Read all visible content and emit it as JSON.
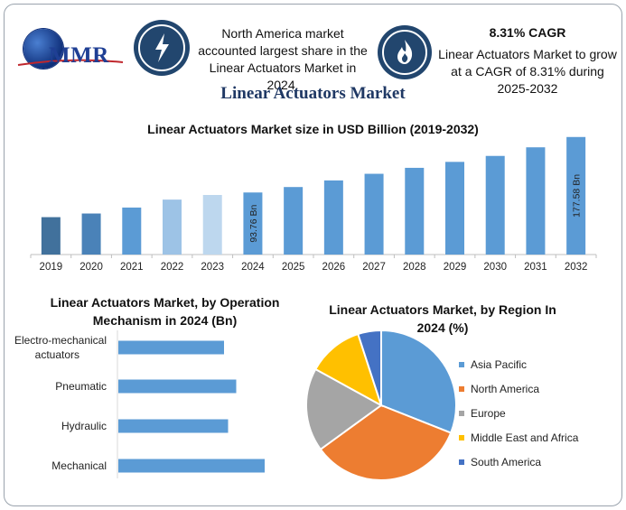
{
  "brand": {
    "logo_text": "MMR"
  },
  "info_left": {
    "icon": "lightning-icon",
    "text": "North America market accounted largest share in the Linear Actuators Market in 2024."
  },
  "info_right": {
    "icon": "flame-icon",
    "heading": "8.31% CAGR",
    "text": "Linear Actuators Market to grow at a CAGR of 8.31% during 2025-2032"
  },
  "main_title": "Linear Actuators Market",
  "colors": {
    "bar_primary": "#5b9bd5",
    "bar_dark": "#41719c",
    "bar_light": "#9dc3e6",
    "bar_lighter": "#bdd7ee",
    "icon_bg": "#22466e",
    "title_navy": "#1f3864"
  },
  "chart_data": [
    {
      "type": "bar",
      "title": "Linear Actuators Market size in USD Billion (2019-2032)",
      "categories": [
        "2019",
        "2020",
        "2021",
        "2022",
        "2023",
        "2024",
        "2025",
        "2026",
        "2027",
        "2028",
        "2029",
        "2030",
        "2031",
        "2032"
      ],
      "values": [
        56.5,
        62.0,
        71.0,
        83.0,
        90.0,
        93.76,
        102.0,
        112.0,
        122.0,
        131.0,
        140.0,
        149.0,
        162.0,
        177.58
      ],
      "bar_colors": [
        "#41719c",
        "#4a82b8",
        "#5b9bd5",
        "#9dc3e6",
        "#bdd7ee",
        "#5b9bd5",
        "#5b9bd5",
        "#5b9bd5",
        "#5b9bd5",
        "#5b9bd5",
        "#5b9bd5",
        "#5b9bd5",
        "#5b9bd5",
        "#5b9bd5"
      ],
      "data_labels": [
        {
          "category": "2024",
          "text": "93.76 Bn"
        },
        {
          "category": "2032",
          "text": "177.58 Bn"
        }
      ],
      "ylim": [
        0,
        180
      ],
      "grid": false
    },
    {
      "type": "bar",
      "orientation": "horizontal",
      "title": "Linear Actuators Market, by Operation Mechanism in 2024 (Bn)",
      "categories": [
        "Electro-mechanical actuators",
        "Pneumatic",
        "Hydraulic",
        "Mechanical"
      ],
      "values": [
        26,
        29,
        27,
        36
      ],
      "xlim": [
        0,
        40
      ],
      "color": "#5b9bd5"
    },
    {
      "type": "pie",
      "title": "Linear Actuators Market, by Region In 2024 (%)",
      "labels": [
        "Asia Pacific",
        "North America",
        "Europe",
        "Middle East and Africa",
        "South America"
      ],
      "values": [
        31,
        34,
        18,
        12,
        5
      ],
      "colors": [
        "#5b9bd5",
        "#ed7d31",
        "#a5a5a5",
        "#ffc000",
        "#4472c4"
      ],
      "legend_position": "right"
    }
  ]
}
